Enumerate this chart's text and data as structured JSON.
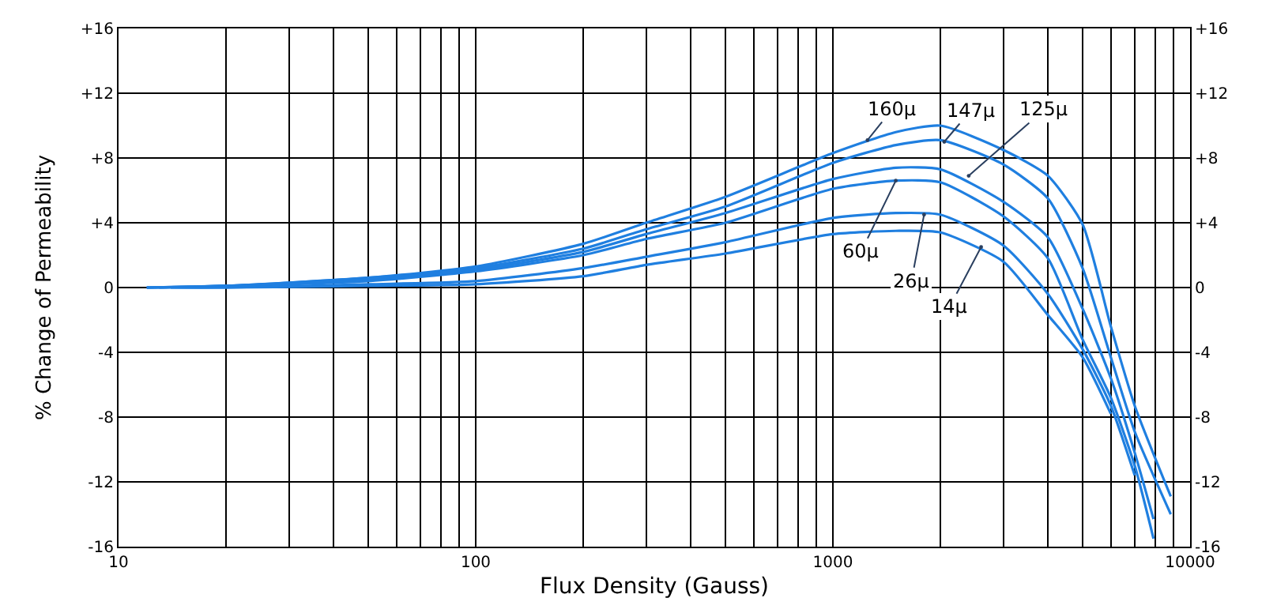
{
  "chart_data": {
    "type": "line",
    "xlabel": "Flux Density (Gauss)",
    "ylabel": "% Change of Permeability",
    "log": "x",
    "grid": true,
    "marker": "none",
    "line_style": "solid",
    "x": [
      12,
      20,
      50,
      100,
      200,
      300,
      500,
      1000,
      1500,
      2000,
      3000,
      4000,
      5000,
      6000,
      7000,
      7900
    ],
    "series": [
      {
        "color": "#1f7fe0",
        "x": [
          12,
          20,
          50,
          100,
          200,
          300,
          500,
          1000,
          1500,
          2000,
          3000,
          4000,
          5000,
          6000,
          7000,
          8830
        ],
        "values": [
          0,
          0.1,
          0.6,
          1.3,
          2.7,
          4.0,
          5.6,
          8.3,
          9.6,
          10.0,
          8.5,
          6.9,
          3.9,
          -2.4,
          -7.3,
          -12.9
        ]
      },
      {
        "color": "#1f7fe0",
        "x": [
          12,
          20,
          50,
          100,
          200,
          300,
          500,
          1000,
          1500,
          2000,
          3000,
          4000,
          5000,
          6000,
          7000,
          8830
        ],
        "values": [
          0,
          0.1,
          0.6,
          1.2,
          2.4,
          3.6,
          5.0,
          7.7,
          8.8,
          9.1,
          7.6,
          5.5,
          1.2,
          -4.3,
          -8.9,
          -14.0
        ]
      },
      {
        "color": "#1f7fe0",
        "values": [
          0,
          0.1,
          0.5,
          1.1,
          2.2,
          3.3,
          4.6,
          6.7,
          7.4,
          7.3,
          5.3,
          3.1,
          -1.3,
          -5.6,
          -10.2,
          -14.3
        ]
      },
      {
        "color": "#1f7fe0",
        "values": [
          0,
          0.1,
          0.4,
          1.0,
          2.0,
          3.0,
          4.0,
          6.1,
          6.6,
          6.5,
          4.4,
          1.8,
          -3.2,
          -6.8,
          -11.0,
          -15.5
        ]
      },
      {
        "color": "#1f7fe0",
        "x": [
          13,
          20,
          50,
          100,
          200,
          300,
          500,
          1000,
          1500,
          2000,
          3000,
          4000,
          5000,
          6000,
          7000
        ],
        "values": [
          0,
          0,
          0.2,
          0.4,
          1.2,
          1.9,
          2.8,
          4.3,
          4.6,
          4.5,
          2.6,
          -0.4,
          -3.8,
          -7.3,
          -11.6
        ]
      },
      {
        "color": "#1f7fe0",
        "x": [
          14,
          20,
          50,
          100,
          200,
          300,
          500,
          1000,
          1500,
          2000,
          3000,
          4000,
          5000,
          6000
        ],
        "values": [
          0,
          0,
          0.1,
          0.2,
          0.7,
          1.4,
          2.1,
          3.3,
          3.5,
          3.4,
          1.6,
          -1.7,
          -4.3,
          -7.8
        ]
      }
    ],
    "annotations": [
      {
        "text": "160µ",
        "x": 1250,
        "y": 9.1
      },
      {
        "text": "147µ",
        "x": 2050,
        "y": 9.0
      },
      {
        "text": "125µ",
        "x": 2400,
        "y": 6.9
      },
      {
        "text": "60µ",
        "x": 1500,
        "y": 6.6
      },
      {
        "text": "26µ",
        "x": 1800,
        "y": 4.5
      },
      {
        "text": "14µ",
        "x": 2600,
        "y": 2.5
      }
    ],
    "xlim": [
      10,
      10000
    ],
    "xticks": [
      10,
      {
        "value": 20,
        "label": null
      },
      {
        "value": 30,
        "label": null
      },
      {
        "value": 40,
        "label": null
      },
      {
        "value": 50,
        "label": null
      },
      {
        "value": 60,
        "label": null
      },
      {
        "value": 70,
        "label": null
      },
      {
        "value": 80,
        "label": null
      },
      {
        "value": 90,
        "label": null
      },
      100,
      {
        "value": 200,
        "label": null
      },
      {
        "value": 300,
        "label": null
      },
      {
        "value": 400,
        "label": null
      },
      {
        "value": 500,
        "label": null
      },
      {
        "value": 600,
        "label": null
      },
      {
        "value": 700,
        "label": null
      },
      {
        "value": 800,
        "label": null
      },
      {
        "value": 900,
        "label": null
      },
      1000,
      {
        "value": 2000,
        "label": null
      },
      {
        "value": 3000,
        "label": null
      },
      {
        "value": 4000,
        "label": null
      },
      {
        "value": 5000,
        "label": null
      },
      {
        "value": 6000,
        "label": null
      },
      {
        "value": 7000,
        "label": null
      },
      {
        "value": 8000,
        "label": null
      },
      {
        "value": 9000,
        "label": null
      },
      10000
    ],
    "ylim": [
      -16,
      16
    ],
    "yticks": [
      {
        "value": -16,
        "label": "-16"
      },
      {
        "value": -12,
        "label": "-12"
      },
      {
        "value": -8,
        "label": "-8"
      },
      {
        "value": -4,
        "label": "-4"
      },
      0,
      {
        "value": 4,
        "label": "+4"
      },
      {
        "value": 8,
        "label": "+8"
      },
      {
        "value": 12,
        "label": "+12"
      },
      {
        "value": 16,
        "label": "+16"
      }
    ],
    "y2lim": [
      -16,
      16
    ],
    "y2ticks": [
      {
        "value": -16,
        "label": "-16"
      },
      {
        "value": -12,
        "label": "-12"
      },
      {
        "value": -8,
        "label": "-8"
      },
      {
        "value": -4,
        "label": "-4"
      },
      0,
      {
        "value": 4,
        "label": "+4"
      },
      {
        "value": 8,
        "label": "+8"
      },
      {
        "value": 12,
        "label": "+12"
      },
      {
        "value": 16,
        "label": "+16"
      }
    ]
  }
}
